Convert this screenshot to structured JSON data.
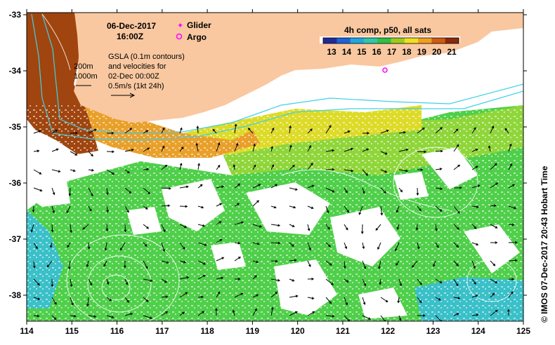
{
  "map": {
    "date": "06-Dec-2017",
    "time": "16:00Z",
    "legend": {
      "glider": "Glider",
      "argo": "Argo",
      "glider_color": "#ff00ff",
      "argo_color": "#ff00ff"
    },
    "annotation_lines": [
      "GSLA (0.1m contours)",
      "and velocities for",
      "02-Dec 00:00Z",
      "0.5m/s (1kt 24h)"
    ],
    "isobath_labels": [
      "200m",
      "1000m"
    ],
    "colorbar": {
      "title": "4h comp, p50, all sats",
      "ticks": [
        "13",
        "14",
        "15",
        "16",
        "17",
        "18",
        "19",
        "20",
        "21"
      ],
      "colors": [
        "#1f2a9a",
        "#1f62d6",
        "#20a8e0",
        "#30c8a8",
        "#2fc046",
        "#9ccb1f",
        "#f0e020",
        "#f0a020",
        "#d05a12",
        "#8a2a0a"
      ]
    },
    "x_ticks": [
      "114",
      "115",
      "116",
      "117",
      "118",
      "119",
      "120",
      "121",
      "122",
      "123",
      "124",
      "125"
    ],
    "y_ticks": [
      "-33",
      "-34",
      "-35",
      "-36",
      "-37",
      "-38"
    ],
    "copyright": "© IMOS 07-Dec-2017 20:43 Hobart Time",
    "colors": {
      "land": "#f9c8a0",
      "ocean_green": "#4fcf4a",
      "ocean_lightgreen": "#8fd63a",
      "ocean_yellow": "#dddb28",
      "ocean_orange": "#e9a02a",
      "ocean_brown": "#a0450f",
      "ocean_cyan": "#3ac0c8",
      "isobath": "#40d0e8"
    }
  }
}
